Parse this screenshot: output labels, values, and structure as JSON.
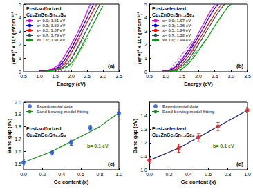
{
  "chart_data": [
    {
      "type": "line",
      "panel_label": "(a)",
      "annotations": [
        "Post-sulfurized",
        "Cu₂ZnGeₓSn₁₋ₓS₄"
      ],
      "x_label": "Energy (eV)",
      "y_label": "(αhν)² x 10⁸ (eVcm⁻¹)²",
      "xlim": [
        0.5,
        3.5
      ],
      "xticks": [
        0.5,
        {
          "value": 1,
          "label": "1.0"
        },
        1.5,
        {
          "value": 2,
          "label": "2.0"
        },
        2.5,
        {
          "value": 3,
          "label": "3.0"
        },
        3.5
      ],
      "ylim": [
        0,
        5
      ],
      "yticks": [
        0,
        1,
        2,
        3,
        4,
        5
      ],
      "grid": false,
      "legend": "upper left",
      "series": [
        {
          "name": "x= 0.0; 1.51 eV",
          "color": "#e000e0",
          "x": [
            1.0,
            1.2,
            1.4,
            1.6,
            1.8,
            2.0,
            2.2,
            2.4,
            2.6
          ],
          "values": [
            0.05,
            0.1,
            0.2,
            0.5,
            1.2,
            2.0,
            2.9,
            3.9,
            5.0
          ],
          "fit": {
            "x": [
              1.51,
              2.11
            ],
            "y": [
              0,
              2.5
            ]
          }
        },
        {
          "name": "x= 0.3; 1.59 eV",
          "color": "#0000ff",
          "x": [
            1.0,
            1.2,
            1.4,
            1.6,
            1.8,
            2.0,
            2.2,
            2.4,
            2.6,
            2.7
          ],
          "values": [
            0.04,
            0.08,
            0.15,
            0.35,
            0.9,
            1.7,
            2.6,
            3.5,
            4.5,
            5.0
          ],
          "fit": {
            "x": [
              1.59,
              2.19
            ],
            "y": [
              0,
              2.5
            ]
          }
        },
        {
          "name": "x= 0.5; 1.67 eV",
          "color": "#ff0000",
          "x": [
            1.0,
            1.2,
            1.4,
            1.6,
            1.8,
            2.0,
            2.2,
            2.4,
            2.6,
            2.8
          ],
          "values": [
            0.03,
            0.06,
            0.12,
            0.25,
            0.65,
            1.4,
            2.3,
            3.2,
            4.1,
            5.0
          ],
          "fit": {
            "x": [
              1.67,
              2.27
            ],
            "y": [
              0,
              2.5
            ]
          }
        },
        {
          "name": "x= 0.7; 1.79 eV",
          "color": "#2f4f4f",
          "x": [
            1.0,
            1.2,
            1.4,
            1.6,
            1.8,
            2.0,
            2.2,
            2.4,
            2.6,
            2.8,
            2.9
          ],
          "values": [
            0.02,
            0.05,
            0.1,
            0.18,
            0.4,
            0.95,
            1.8,
            2.7,
            3.6,
            4.5,
            5.0
          ],
          "fit": {
            "x": [
              1.79,
              2.39
            ],
            "y": [
              0,
              2.5
            ]
          }
        },
        {
          "name": "x= 1.0; 1.91 eV",
          "color": "#00a000",
          "x": [
            1.0,
            1.2,
            1.4,
            1.6,
            1.8,
            2.0,
            2.2,
            2.4,
            2.6,
            2.8,
            3.0
          ],
          "values": [
            0.02,
            0.04,
            0.08,
            0.14,
            0.28,
            0.6,
            1.3,
            2.2,
            3.1,
            4.0,
            4.9
          ],
          "fit": {
            "x": [
              1.91,
              2.51
            ],
            "y": [
              0,
              2.5
            ]
          }
        }
      ]
    },
    {
      "type": "line",
      "panel_label": "(b)",
      "annotations": [
        "Post-selenized",
        "Cu₂ZnGeₓSn₁₋ₓSe₄"
      ],
      "x_label": "Energy (eV)",
      "y_label": "(αhν)² x 10⁸ (eVcm⁻¹)²",
      "xlim": [
        0.5,
        3.5
      ],
      "xticks": [
        0.5,
        {
          "value": 1,
          "label": "1.0"
        },
        1.5,
        {
          "value": 2,
          "label": "2.0"
        },
        2.5,
        {
          "value": 3,
          "label": "3.0"
        },
        3.5
      ],
      "ylim": [
        0,
        5
      ],
      "yticks": [
        0,
        1,
        2,
        3,
        4,
        5
      ],
      "grid": false,
      "legend": "upper left",
      "series": [
        {
          "name": "x= 0.0; 1.07 eV",
          "color": "#e000e0",
          "x": [
            0.9,
            1.1,
            1.3,
            1.5,
            1.7,
            1.9,
            2.1,
            2.3,
            2.5
          ],
          "values": [
            0.05,
            0.12,
            0.4,
            0.9,
            1.6,
            2.4,
            3.3,
            4.2,
            5.0
          ],
          "fit": {
            "x": [
              1.07,
              1.87
            ],
            "y": [
              0,
              2.4
            ]
          }
        },
        {
          "name": "x= 0.3; 1.16 eV",
          "color": "#0000ff",
          "x": [
            0.9,
            1.1,
            1.3,
            1.5,
            1.7,
            1.9,
            2.1,
            2.3,
            2.5,
            2.6
          ],
          "values": [
            0.04,
            0.08,
            0.3,
            0.75,
            1.4,
            2.2,
            3.0,
            3.9,
            4.7,
            5.0
          ],
          "fit": {
            "x": [
              1.16,
              1.96
            ],
            "y": [
              0,
              2.4
            ]
          }
        },
        {
          "name": "x= 0.5; 1.24 eV",
          "color": "#ff0000",
          "x": [
            0.9,
            1.1,
            1.3,
            1.5,
            1.7,
            1.9,
            2.1,
            2.3,
            2.5,
            2.7
          ],
          "values": [
            0.03,
            0.06,
            0.18,
            0.55,
            1.15,
            1.9,
            2.7,
            3.5,
            4.3,
            5.0
          ],
          "fit": {
            "x": [
              1.24,
              2.04
            ],
            "y": [
              0,
              2.4
            ]
          }
        },
        {
          "name": "x= 0.7; 1.32 eV",
          "color": "#2f4f4f",
          "x": [
            0.9,
            1.1,
            1.3,
            1.5,
            1.7,
            1.9,
            2.1,
            2.3,
            2.5,
            2.7,
            2.8
          ],
          "values": [
            0.02,
            0.05,
            0.1,
            0.38,
            0.9,
            1.6,
            2.4,
            3.2,
            4.0,
            4.7,
            5.0
          ],
          "fit": {
            "x": [
              1.32,
              2.12
            ],
            "y": [
              0,
              2.4
            ]
          }
        },
        {
          "name": "x= 1.0; 1.44 eV",
          "color": "#00a000",
          "x": [
            0.9,
            1.1,
            1.3,
            1.5,
            1.7,
            1.9,
            2.1,
            2.3,
            2.5,
            2.7,
            2.9,
            3.0
          ],
          "values": [
            0.02,
            0.04,
            0.07,
            0.2,
            0.6,
            1.2,
            1.9,
            2.6,
            3.4,
            4.1,
            4.8,
            5.0
          ],
          "fit": {
            "x": [
              1.44,
              2.24
            ],
            "y": [
              0,
              2.4
            ]
          }
        }
      ]
    },
    {
      "type": "scatter",
      "panel_label": "(c)",
      "annotations": [
        "Post-sulfurized",
        "Cu₂ZnGeₓSn₁₋ₓS₄",
        "b= 0.1 eV"
      ],
      "x_label": "Ge content (x)",
      "y_label": "Band gap (eV)",
      "xlim": [
        0,
        1
      ],
      "xticks": [
        {
          "value": 0,
          "label": "0.0"
        },
        0.2,
        0.4,
        0.6,
        0.8,
        {
          "value": 1,
          "label": "1.0"
        }
      ],
      "ylim": [
        1.45,
        2.0
      ],
      "yticks": [
        1.5,
        1.6,
        1.7,
        1.8,
        1.9,
        {
          "value": 2,
          "label": "2.0"
        }
      ],
      "grid": false,
      "legend": "upper left",
      "series": [
        {
          "name": "Experimental data",
          "type": "scatter",
          "marker": "circle",
          "color": "#1f4fd6",
          "x": [
            0,
            0.3,
            0.5,
            0.7,
            1.0
          ],
          "values": [
            1.51,
            1.59,
            1.67,
            1.79,
            1.91
          ],
          "errors": [
            0.02,
            0.02,
            0.02,
            0.02,
            0.03
          ]
        },
        {
          "name": "Band bowing model fitting",
          "type": "line",
          "color": "#1a8a1a",
          "x": [
            0,
            0.1,
            0.2,
            0.3,
            0.4,
            0.5,
            0.6,
            0.7,
            0.8,
            0.9,
            1.0
          ],
          "values": [
            1.51,
            1.54,
            1.57,
            1.6,
            1.64,
            1.68,
            1.72,
            1.76,
            1.8,
            1.86,
            1.91
          ]
        }
      ]
    },
    {
      "type": "scatter",
      "panel_label": "(d)",
      "annotations": [
        "Post-selenized",
        "Cu₂ZnGeₓSn₁₋ₓSe₄",
        "b= 0.1 eV"
      ],
      "x_label": "Ge content (x)",
      "y_label": "Band gap (eV)",
      "xlim": [
        0,
        1
      ],
      "xticks": [
        {
          "value": 0,
          "label": "0.0"
        },
        0.2,
        0.4,
        0.6,
        0.8,
        {
          "value": 1,
          "label": "1.0"
        }
      ],
      "ylim": [
        1.0,
        1.5
      ],
      "yticks": [
        {
          "value": 1,
          "label": "1.0"
        },
        1.1,
        1.2,
        1.3,
        1.4
      ],
      "grid": false,
      "legend": "upper left",
      "series": [
        {
          "name": "Experimental data",
          "type": "scatter",
          "marker": "circle",
          "color": "#e02020",
          "x": [
            0,
            0.3,
            0.5,
            0.7,
            1.0
          ],
          "values": [
            1.07,
            1.16,
            1.24,
            1.32,
            1.44
          ],
          "errors": [
            0.02,
            0.03,
            0.03,
            0.03,
            0.02
          ]
        },
        {
          "name": "Band bowing model fitting",
          "type": "line",
          "color": "#1a237e",
          "x": [
            0,
            0.1,
            0.2,
            0.3,
            0.4,
            0.5,
            0.6,
            0.7,
            0.8,
            0.9,
            1.0
          ],
          "values": [
            1.07,
            1.1,
            1.13,
            1.16,
            1.2,
            1.24,
            1.28,
            1.32,
            1.36,
            1.4,
            1.44
          ]
        }
      ]
    }
  ]
}
